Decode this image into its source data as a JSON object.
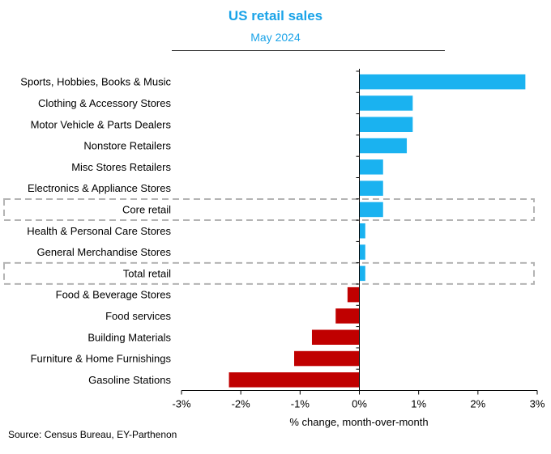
{
  "chart_data": {
    "type": "bar",
    "orientation": "horizontal",
    "title": "US retail sales",
    "subtitle": "May 2024",
    "xlabel": "% change, month-over-month",
    "ylabel": "",
    "xlim": [
      -3,
      3
    ],
    "xticks": [
      "-3%",
      "-2%",
      "-1%",
      "0%",
      "1%",
      "2%",
      "3%"
    ],
    "categories": [
      "Sports, Hobbies, Books & Music",
      "Clothing & Accessory Stores",
      "Motor Vehicle & Parts Dealers",
      "Nonstore Retailers",
      "Misc Stores Retailers",
      "Electronics & Appliance Stores",
      "Core retail",
      "Health & Personal Care Stores",
      "General Merchandise Stores",
      "Total retail",
      "Food & Beverage Stores",
      "Food services",
      "Building Materials",
      "Furniture & Home Furnishings",
      "Gasoline Stations"
    ],
    "values": [
      2.8,
      0.9,
      0.9,
      0.8,
      0.4,
      0.4,
      0.4,
      0.1,
      0.1,
      0.1,
      -0.2,
      -0.4,
      -0.8,
      -1.1,
      -2.2
    ],
    "highlighted": [
      "Core retail",
      "Total retail"
    ],
    "colors": {
      "positive": "#1ab2f0",
      "negative": "#c00000",
      "highlight_box": "#b4b4b4",
      "title": "#1aa3e8"
    },
    "grid": false,
    "legend": "none"
  },
  "source": "Source: Census Bureau, EY-Parthenon"
}
